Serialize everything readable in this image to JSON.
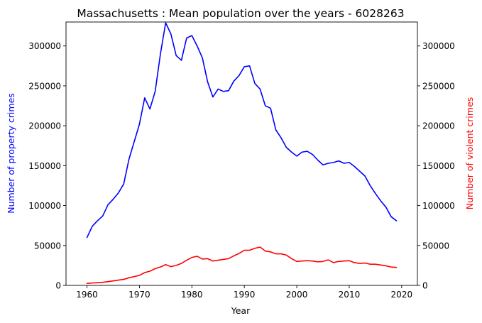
{
  "chart_data": {
    "type": "line",
    "title": "Massachusetts : Mean population over the years - 6028263",
    "xlabel": "Year",
    "ylabel_left": "Number of property crimes",
    "ylabel_right": "Number of violent crimes",
    "xlim": [
      1956,
      2023
    ],
    "ylim": [
      0,
      330000
    ],
    "x_ticks": [
      1960,
      1970,
      1980,
      1990,
      2000,
      2010,
      2020
    ],
    "y_ticks": [
      0,
      50000,
      100000,
      150000,
      200000,
      250000,
      300000
    ],
    "grid": false,
    "x": [
      1960,
      1961,
      1962,
      1963,
      1964,
      1965,
      1966,
      1967,
      1968,
      1969,
      1970,
      1971,
      1972,
      1973,
      1974,
      1975,
      1976,
      1977,
      1978,
      1979,
      1980,
      1981,
      1982,
      1983,
      1984,
      1985,
      1986,
      1987,
      1988,
      1989,
      1990,
      1991,
      1992,
      1993,
      1994,
      1995,
      1996,
      1997,
      1998,
      1999,
      2000,
      2001,
      2002,
      2003,
      2004,
      2005,
      2006,
      2007,
      2008,
      2009,
      2010,
      2011,
      2012,
      2013,
      2014,
      2015,
      2016,
      2017,
      2018,
      2019
    ],
    "series": [
      {
        "axis": "left",
        "color": "#0000ff",
        "values": [
          60000,
          74000,
          81000,
          87000,
          101000,
          108000,
          116000,
          127000,
          158000,
          180000,
          202000,
          235000,
          221000,
          243000,
          290000,
          329000,
          315000,
          288000,
          282000,
          310000,
          313000,
          300000,
          285000,
          255000,
          236000,
          246000,
          243000,
          244000,
          256000,
          263000,
          274000,
          275000,
          253000,
          246000,
          225000,
          222000,
          195000,
          185000,
          173000,
          167000,
          162000,
          167000,
          168000,
          164000,
          157000,
          151000,
          153000,
          154000,
          156000,
          153000,
          154000,
          149000,
          143000,
          137000,
          125000,
          115000,
          106000,
          98000,
          86000,
          81000
        ]
      },
      {
        "axis": "right",
        "color": "#ff0000",
        "values": [
          2500,
          3000,
          3400,
          3800,
          4700,
          5600,
          6600,
          7500,
          9500,
          11000,
          12500,
          16000,
          17800,
          21000,
          23000,
          26000,
          23500,
          25000,
          27500,
          31500,
          35000,
          36500,
          33000,
          33500,
          30500,
          31500,
          32500,
          33500,
          37000,
          40000,
          44000,
          44000,
          46500,
          48000,
          43000,
          42000,
          39500,
          39500,
          38000,
          33500,
          30000,
          30500,
          31000,
          30500,
          29500,
          30000,
          32000,
          28500,
          30000,
          30500,
          31000,
          28500,
          27500,
          28000,
          26500,
          26500,
          25500,
          24500,
          23000,
          22500
        ]
      }
    ]
  }
}
